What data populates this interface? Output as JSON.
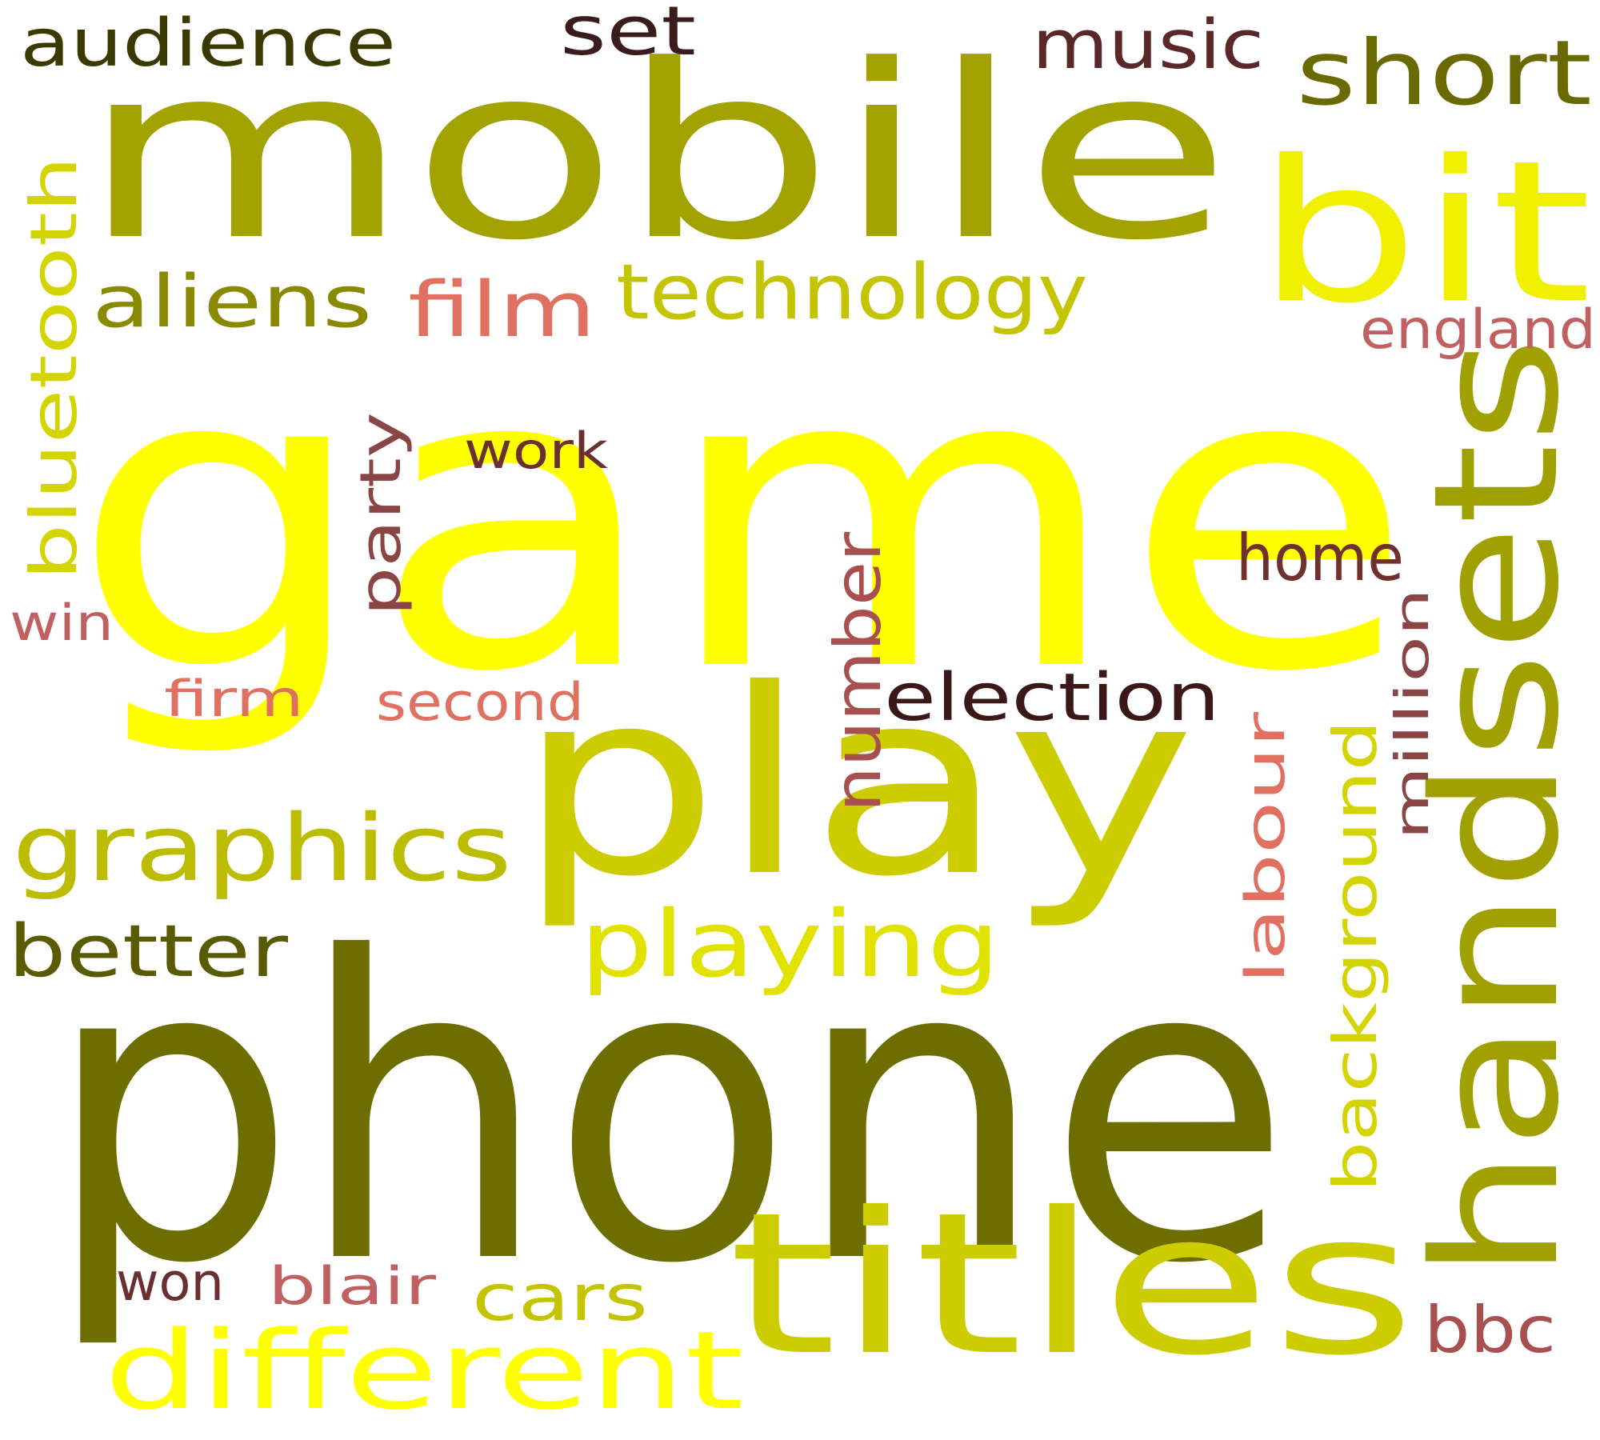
{
  "words": [
    {
      "text": "game",
      "color": "#ffff00"
    },
    {
      "text": "phone",
      "color": "#6e6e00"
    },
    {
      "text": "mobile",
      "color": "#a2a200"
    },
    {
      "text": "play",
      "color": "#cccc00"
    },
    {
      "text": "handsets",
      "color": "#a0a000"
    },
    {
      "text": "titles",
      "color": "#cccc00"
    },
    {
      "text": "bit",
      "color": "#f0f000"
    },
    {
      "text": "different",
      "color": "#ffff00"
    },
    {
      "text": "graphics",
      "color": "#bcbc00"
    },
    {
      "text": "playing",
      "color": "#e2e200"
    },
    {
      "text": "technology",
      "color": "#c4c400"
    },
    {
      "text": "short",
      "color": "#6a6a00"
    },
    {
      "text": "audience",
      "color": "#3a3a00"
    },
    {
      "text": "aliens",
      "color": "#8a8a00"
    },
    {
      "text": "better",
      "color": "#5a5a00"
    },
    {
      "text": "bluetooth",
      "color": "#d4d400"
    },
    {
      "text": "film",
      "color": "#e07060"
    },
    {
      "text": "music",
      "color": "#5a2828"
    },
    {
      "text": "set",
      "color": "#3a1c1c"
    },
    {
      "text": "england",
      "color": "#c06060"
    },
    {
      "text": "number",
      "color": "#a85050"
    },
    {
      "text": "election",
      "color": "#3a1818"
    },
    {
      "text": "home",
      "color": "#703030"
    },
    {
      "text": "party",
      "color": "#8a4545"
    },
    {
      "text": "work",
      "color": "#6a3030"
    },
    {
      "text": "win",
      "color": "#c06060"
    },
    {
      "text": "firm",
      "color": "#e07060"
    },
    {
      "text": "second",
      "color": "#e07060"
    },
    {
      "text": "labour",
      "color": "#e07060"
    },
    {
      "text": "background",
      "color": "#d4d400"
    },
    {
      "text": "million",
      "color": "#8a4545"
    },
    {
      "text": "cars",
      "color": "#c4c400"
    },
    {
      "text": "won",
      "color": "#6a3030"
    },
    {
      "text": "blair",
      "color": "#c06060"
    },
    {
      "text": "bbc",
      "color": "#a85050"
    }
  ]
}
